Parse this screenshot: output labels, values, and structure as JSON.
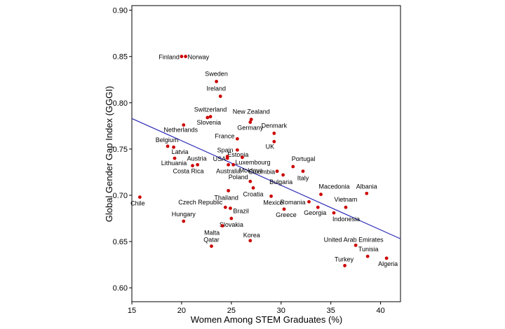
{
  "chart_data": {
    "type": "scatter",
    "title": "",
    "xlabel": "Women Among STEM Graduates (%)",
    "ylabel": "Global Gender Gap Index (GGGI)",
    "xlim": [
      15,
      42
    ],
    "ylim": [
      0.585,
      0.905
    ],
    "xticks": [
      15,
      20,
      25,
      30,
      35,
      40
    ],
    "yticks": [
      "0.60",
      "0.65",
      "0.70",
      "0.75",
      "0.80",
      "0.85",
      "0.90"
    ],
    "grid": false,
    "legend": "none",
    "marker_color": "#cc0000",
    "trend_color": "#2b2bb8",
    "trend_line": {
      "x": [
        15,
        42
      ],
      "y": [
        0.783,
        0.653
      ]
    },
    "points": [
      {
        "name": "Finland",
        "x": 20.0,
        "y": 0.85
      },
      {
        "name": "Norway",
        "x": 20.4,
        "y": 0.85
      },
      {
        "name": "Sweden",
        "x": 23.5,
        "y": 0.823
      },
      {
        "name": "Ireland",
        "x": 23.9,
        "y": 0.807
      },
      {
        "name": "Switzerland",
        "x": 22.9,
        "y": 0.785
      },
      {
        "name": "Slovenia",
        "x": 22.6,
        "y": 0.784
      },
      {
        "name": "New Zealand",
        "x": 27.0,
        "y": 0.782
      },
      {
        "name": "Germany",
        "x": 26.9,
        "y": 0.779
      },
      {
        "name": "Netherlands",
        "x": 20.2,
        "y": 0.776
      },
      {
        "name": "Denmark",
        "x": 29.3,
        "y": 0.767
      },
      {
        "name": "France",
        "x": 25.6,
        "y": 0.761
      },
      {
        "name": "Belgium",
        "x": 18.6,
        "y": 0.753
      },
      {
        "name": "UK",
        "x": 29.3,
        "y": 0.758
      },
      {
        "name": "Latvia",
        "x": 19.2,
        "y": 0.752
      },
      {
        "name": "Estonia",
        "x": 25.6,
        "y": 0.749
      },
      {
        "name": "Spain",
        "x": 24.6,
        "y": 0.742
      },
      {
        "name": "Luxembourg",
        "x": 26.1,
        "y": 0.741
      },
      {
        "name": "USA",
        "x": 24.6,
        "y": 0.74
      },
      {
        "name": "Lithuania",
        "x": 19.3,
        "y": 0.74
      },
      {
        "name": "Portugal",
        "x": 31.2,
        "y": 0.731
      },
      {
        "name": "Moldova",
        "x": 25.2,
        "y": 0.733
      },
      {
        "name": "Austria",
        "x": 21.6,
        "y": 0.733
      },
      {
        "name": "Costa Rica",
        "x": 21.1,
        "y": 0.732
      },
      {
        "name": "Colombia",
        "x": 29.6,
        "y": 0.726
      },
      {
        "name": "Australia",
        "x": 24.7,
        "y": 0.733
      },
      {
        "name": "Italy",
        "x": 32.2,
        "y": 0.726
      },
      {
        "name": "Poland",
        "x": 26.9,
        "y": 0.715
      },
      {
        "name": "Bulgaria",
        "x": 30.2,
        "y": 0.722
      },
      {
        "name": "Chile",
        "x": 15.8,
        "y": 0.698
      },
      {
        "name": "Thailand",
        "x": 24.7,
        "y": 0.705
      },
      {
        "name": "Croatia",
        "x": 27.2,
        "y": 0.708
      },
      {
        "name": "Macedonia",
        "x": 34.0,
        "y": 0.701
      },
      {
        "name": "Albania",
        "x": 38.6,
        "y": 0.702
      },
      {
        "name": "Mexico",
        "x": 29.0,
        "y": 0.699
      },
      {
        "name": "Romania",
        "x": 32.8,
        "y": 0.693
      },
      {
        "name": "Vietnam",
        "x": 36.5,
        "y": 0.687
      },
      {
        "name": "Czech Republic",
        "x": 24.4,
        "y": 0.687
      },
      {
        "name": "Greece",
        "x": 30.3,
        "y": 0.685
      },
      {
        "name": "Georgia",
        "x": 33.7,
        "y": 0.687
      },
      {
        "name": "Brazil",
        "x": 24.9,
        "y": 0.686
      },
      {
        "name": "Indonesia",
        "x": 35.3,
        "y": 0.681
      },
      {
        "name": "Hungary",
        "x": 20.2,
        "y": 0.672
      },
      {
        "name": "Slovakia",
        "x": 25.0,
        "y": 0.675
      },
      {
        "name": "Malta",
        "x": 24.1,
        "y": 0.667
      },
      {
        "name": "Korea",
        "x": 26.9,
        "y": 0.651
      },
      {
        "name": "Qatar",
        "x": 23.0,
        "y": 0.645
      },
      {
        "name": "United Arab Emirates",
        "x": 37.5,
        "y": 0.646
      },
      {
        "name": "Tunisia",
        "x": 38.7,
        "y": 0.634
      },
      {
        "name": "Turkey",
        "x": 36.4,
        "y": 0.624
      },
      {
        "name": "Algeria",
        "x": 40.6,
        "y": 0.632
      }
    ]
  }
}
